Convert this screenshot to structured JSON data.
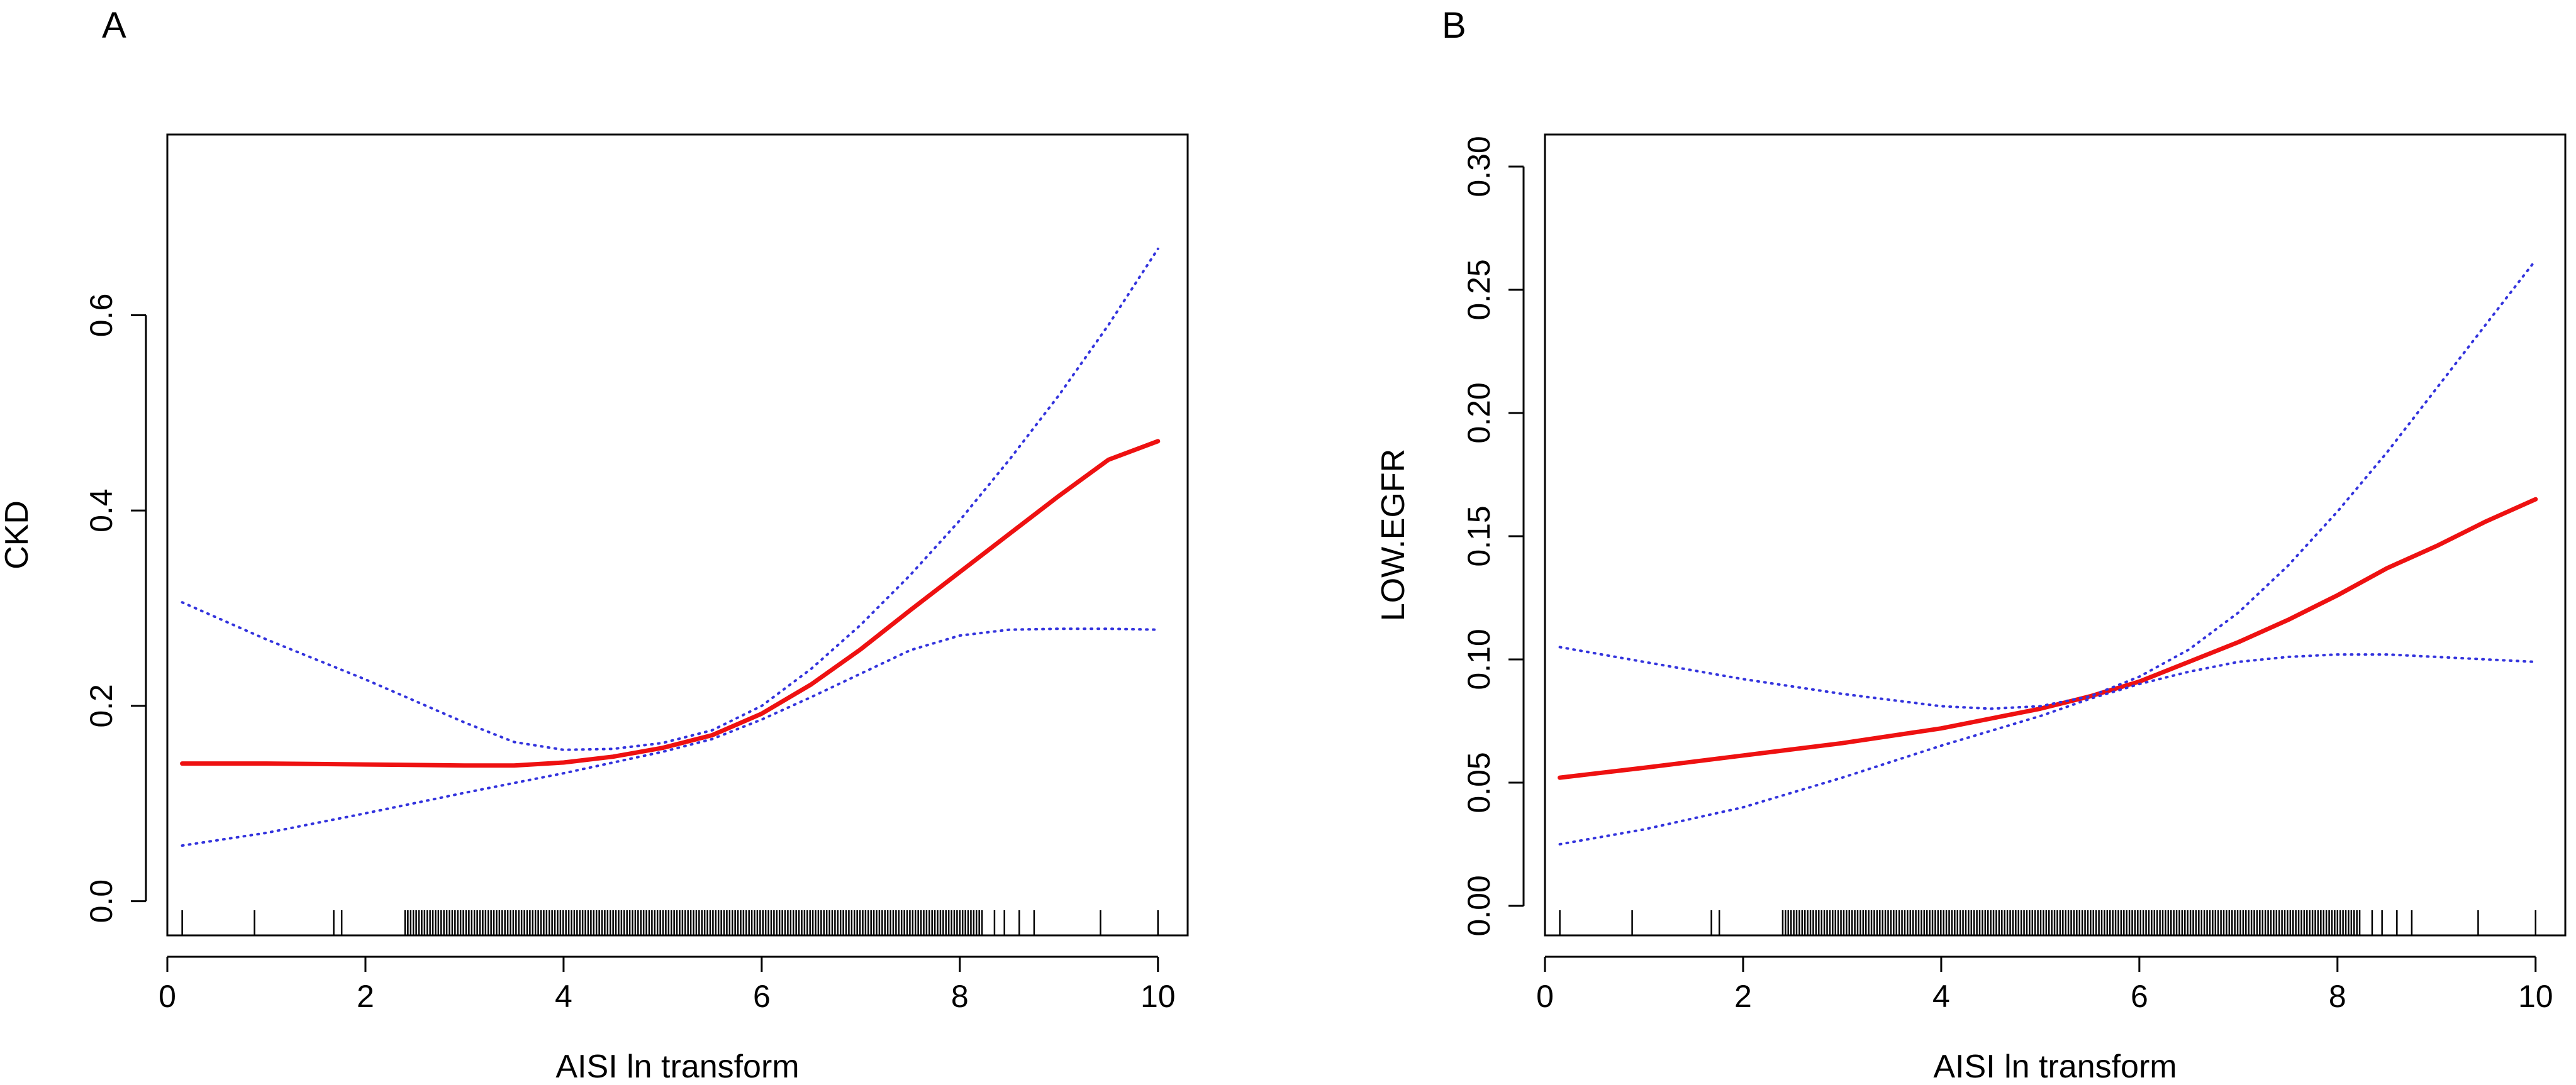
{
  "colors": {
    "fit_line": "#ee1111",
    "ci_line": "#3333dd",
    "axis": "#000000",
    "background": "#ffffff"
  },
  "chart_data": [
    {
      "type": "line",
      "panel_label": "A",
      "xlabel": "AISI ln transform",
      "ylabel": "CKD",
      "xlim": [
        0.0,
        10.3
      ],
      "ylim": [
        -0.035,
        0.785
      ],
      "xticks": [
        0,
        2,
        4,
        6,
        8,
        10
      ],
      "yticks": [
        0.0,
        0.2,
        0.4,
        0.6
      ],
      "ytick_labels": [
        "0.0",
        "0.2",
        "0.4",
        "0.6"
      ],
      "grid": false,
      "rug": true,
      "series": [
        {
          "style": "solid",
          "color": "#ee1111",
          "points": [
            [
              0.15,
              0.141
            ],
            [
              1,
              0.141
            ],
            [
              2,
              0.14
            ],
            [
              3,
              0.139
            ],
            [
              3.5,
              0.139
            ],
            [
              4,
              0.142
            ],
            [
              4.5,
              0.148
            ],
            [
              5,
              0.157
            ],
            [
              5.5,
              0.17
            ],
            [
              6,
              0.192
            ],
            [
              6.5,
              0.222
            ],
            [
              7,
              0.258
            ],
            [
              7.5,
              0.298
            ],
            [
              8,
              0.337
            ],
            [
              8.5,
              0.376
            ],
            [
              9,
              0.415
            ],
            [
              9.5,
              0.452
            ],
            [
              10,
              0.471
            ]
          ]
        },
        {
          "style": "dotted",
          "color": "#3333dd",
          "points": [
            [
              0.15,
              0.306
            ],
            [
              1,
              0.268
            ],
            [
              2,
              0.227
            ],
            [
              3,
              0.183
            ],
            [
              3.5,
              0.163
            ],
            [
              4,
              0.155
            ],
            [
              4.5,
              0.156
            ],
            [
              5,
              0.162
            ],
            [
              5.5,
              0.175
            ],
            [
              6,
              0.2
            ],
            [
              6.5,
              0.238
            ],
            [
              7,
              0.283
            ],
            [
              7.5,
              0.334
            ],
            [
              8,
              0.39
            ],
            [
              8.5,
              0.452
            ],
            [
              9,
              0.518
            ],
            [
              9.5,
              0.59
            ],
            [
              10,
              0.668
            ]
          ]
        },
        {
          "style": "dotted",
          "color": "#3333dd",
          "points": [
            [
              0.15,
              0.057
            ],
            [
              1,
              0.07
            ],
            [
              2,
              0.09
            ],
            [
              3,
              0.111
            ],
            [
              3.5,
              0.121
            ],
            [
              4,
              0.131
            ],
            [
              4.5,
              0.142
            ],
            [
              5,
              0.153
            ],
            [
              5.5,
              0.166
            ],
            [
              6,
              0.186
            ],
            [
              6.5,
              0.209
            ],
            [
              7,
              0.233
            ],
            [
              7.5,
              0.257
            ],
            [
              8,
              0.272
            ],
            [
              8.5,
              0.278
            ],
            [
              9,
              0.279
            ],
            [
              9.5,
              0.279
            ],
            [
              10,
              0.278
            ]
          ]
        }
      ]
    },
    {
      "type": "line",
      "panel_label": "B",
      "xlabel": "AISI ln transform",
      "ylabel": "LOW.EGFR",
      "xlim": [
        0.0,
        10.3
      ],
      "ylim": [
        -0.012,
        0.313
      ],
      "xticks": [
        0,
        2,
        4,
        6,
        8,
        10
      ],
      "yticks": [
        0.0,
        0.05,
        0.1,
        0.15,
        0.2,
        0.25,
        0.3
      ],
      "ytick_labels": [
        "0.00",
        "0.05",
        "0.10",
        "0.15",
        "0.20",
        "0.25",
        "0.30"
      ],
      "grid": false,
      "rug": true,
      "series": [
        {
          "style": "solid",
          "color": "#ee1111",
          "points": [
            [
              0.15,
              0.052
            ],
            [
              1,
              0.056
            ],
            [
              2,
              0.061
            ],
            [
              3,
              0.066
            ],
            [
              4,
              0.072
            ],
            [
              5,
              0.08
            ],
            [
              5.5,
              0.085
            ],
            [
              6,
              0.091
            ],
            [
              6.5,
              0.099
            ],
            [
              7,
              0.107
            ],
            [
              7.5,
              0.116
            ],
            [
              8,
              0.126
            ],
            [
              8.5,
              0.137
            ],
            [
              9,
              0.146
            ],
            [
              9.5,
              0.156
            ],
            [
              10,
              0.165
            ]
          ]
        },
        {
          "style": "dotted",
          "color": "#3333dd",
          "points": [
            [
              0.15,
              0.105
            ],
            [
              1,
              0.099
            ],
            [
              2,
              0.092
            ],
            [
              3,
              0.086
            ],
            [
              4,
              0.081
            ],
            [
              4.5,
              0.08
            ],
            [
              5,
              0.081
            ],
            [
              5.5,
              0.085
            ],
            [
              6,
              0.093
            ],
            [
              6.5,
              0.104
            ],
            [
              7,
              0.119
            ],
            [
              7.5,
              0.138
            ],
            [
              8,
              0.16
            ],
            [
              8.5,
              0.184
            ],
            [
              9,
              0.21
            ],
            [
              9.5,
              0.236
            ],
            [
              10,
              0.262
            ]
          ]
        },
        {
          "style": "dotted",
          "color": "#3333dd",
          "points": [
            [
              0.15,
              0.025
            ],
            [
              1,
              0.031
            ],
            [
              2,
              0.04
            ],
            [
              3,
              0.052
            ],
            [
              4,
              0.065
            ],
            [
              5,
              0.077
            ],
            [
              5.5,
              0.084
            ],
            [
              6,
              0.09
            ],
            [
              6.5,
              0.095
            ],
            [
              7,
              0.099
            ],
            [
              7.5,
              0.101
            ],
            [
              8,
              0.102
            ],
            [
              8.5,
              0.102
            ],
            [
              9,
              0.101
            ],
            [
              9.5,
              0.1
            ],
            [
              10,
              0.099
            ]
          ]
        }
      ]
    }
  ]
}
